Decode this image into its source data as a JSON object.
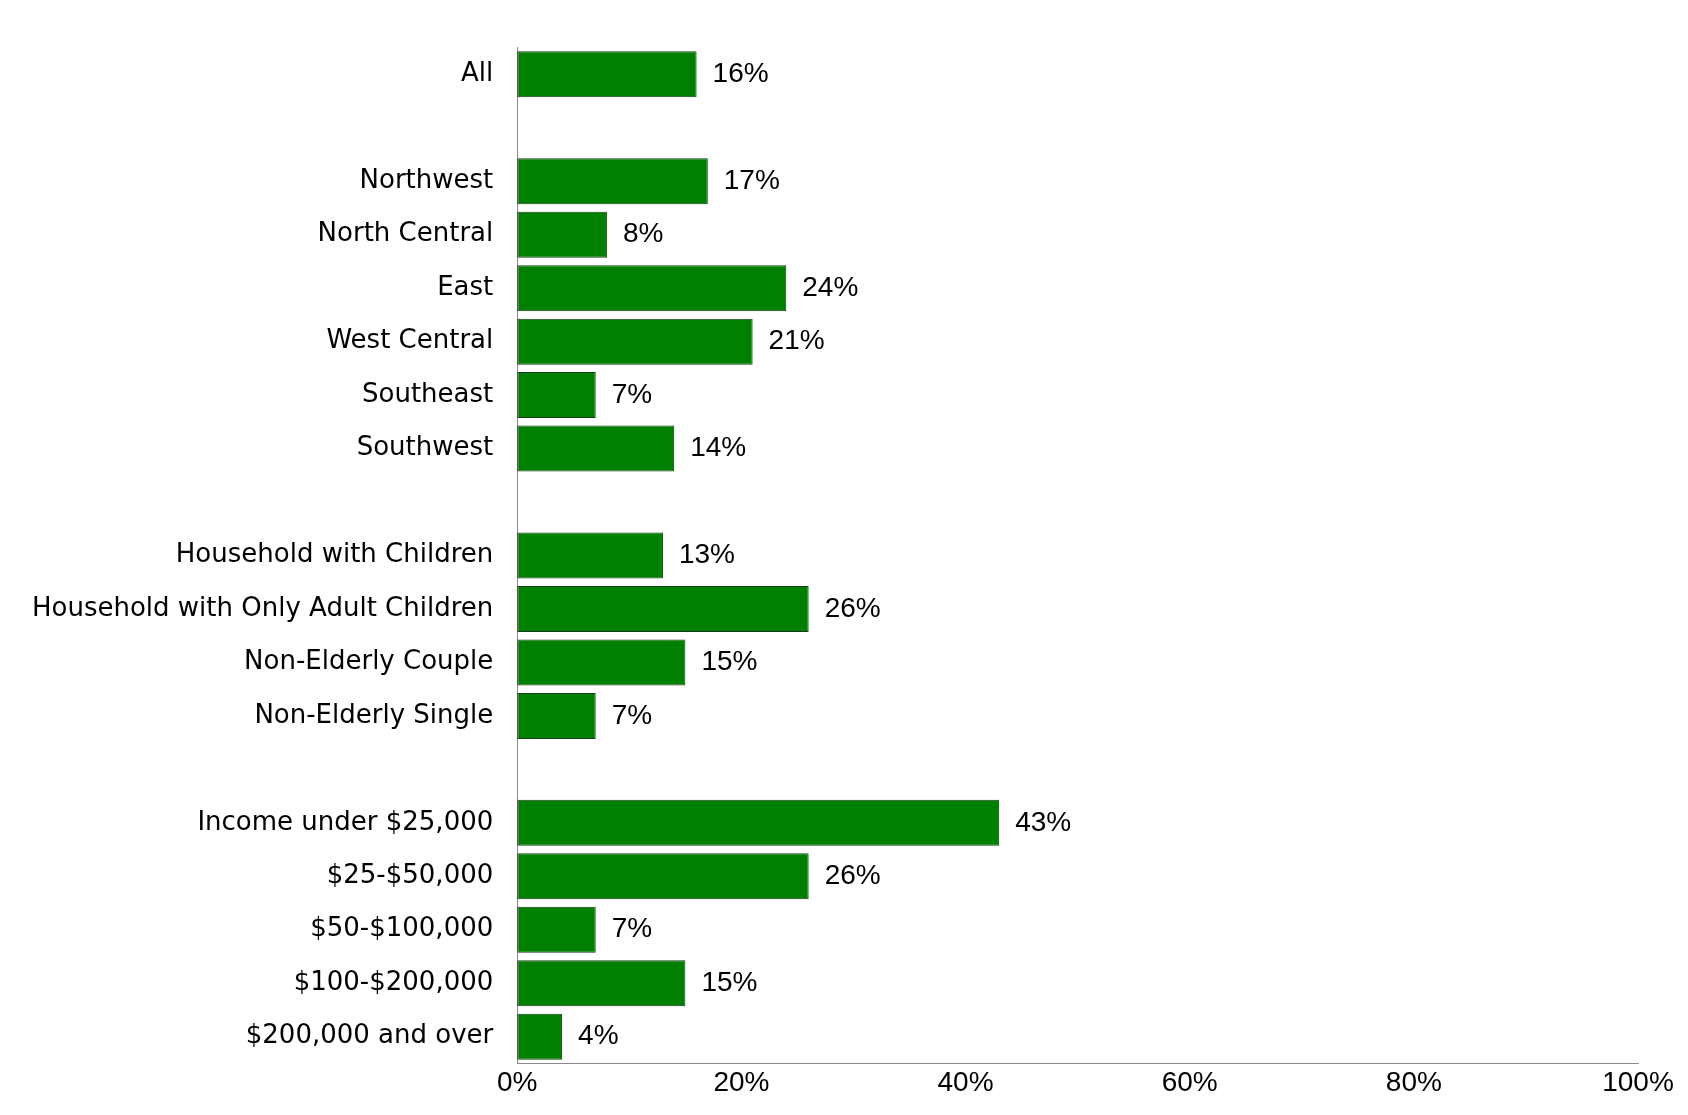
{
  "chart_data": {
    "type": "bar",
    "orientation": "horizontal",
    "categories": [
      "All",
      null,
      "Northwest",
      "North Central",
      "East",
      "West Central",
      "Southeast",
      "Southwest",
      null,
      "Household with Children",
      "Household with Only Adult Children",
      "Non-Elderly Couple",
      "Non-Elderly Single",
      null,
      "Income under $25,000",
      "$25-$50,000",
      "$50-$100,000",
      "$100-$200,000",
      "$200,000 and over"
    ],
    "values": [
      16,
      null,
      17,
      8,
      24,
      21,
      7,
      14,
      null,
      13,
      26,
      15,
      7,
      null,
      43,
      26,
      7,
      15,
      4
    ],
    "value_labels": [
      "16%",
      null,
      "17%",
      "8%",
      "24%",
      "21%",
      "7%",
      "14%",
      null,
      "13%",
      "26%",
      "15%",
      "7%",
      null,
      "43%",
      "26%",
      "7%",
      "15%",
      "4%"
    ],
    "color": "#008000",
    "xlim": [
      0,
      100
    ],
    "xticks": [
      {
        "value": 0,
        "label": "0%"
      },
      {
        "value": 20,
        "label": "20%"
      },
      {
        "value": 40,
        "label": "40%"
      },
      {
        "value": 60,
        "label": "60%"
      },
      {
        "value": 80,
        "label": "80%"
      },
      {
        "value": 100,
        "label": "100%"
      }
    ],
    "grid": false,
    "legend": false
  }
}
